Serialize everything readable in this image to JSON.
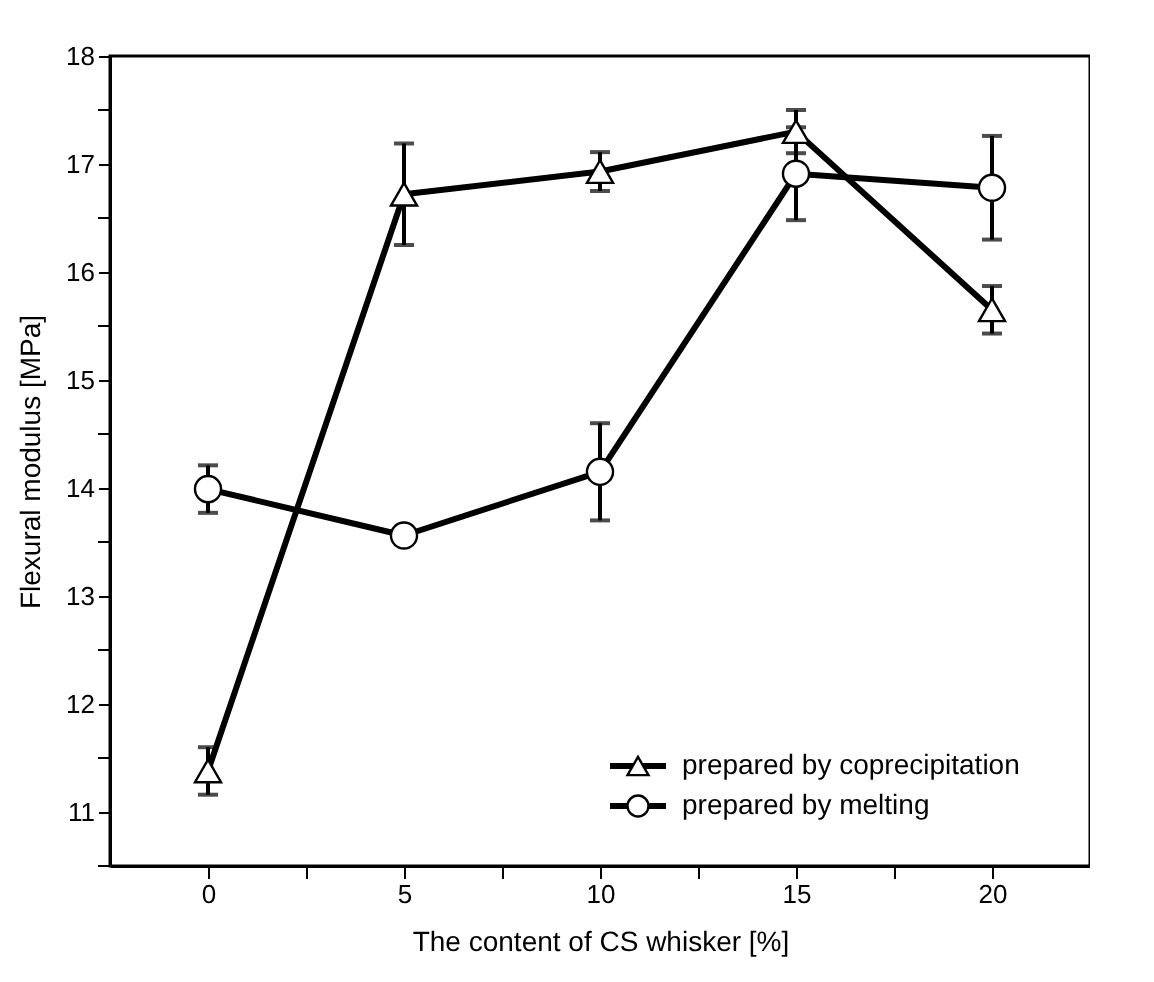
{
  "chart_data": {
    "type": "line",
    "xlabel": "The content of CS whisker [%]",
    "ylabel": "Flexural modulus [MPa]",
    "x": [
      0,
      5,
      10,
      15,
      20
    ],
    "series": [
      {
        "name": "prepared by coprecipitation",
        "color": "#000000",
        "marker": "triangle",
        "values": [
          11.38,
          16.72,
          16.93,
          17.3,
          15.65
        ],
        "errors": [
          0.22,
          0.47,
          0.18,
          0.2,
          0.22
        ]
      },
      {
        "name": "prepared by melting",
        "color": "#000000",
        "marker": "circle",
        "values": [
          13.99,
          13.56,
          14.15,
          16.91,
          16.78
        ],
        "errors": [
          0.22,
          0.08,
          0.45,
          0.43,
          0.48
        ]
      }
    ],
    "xlim": [
      -2.5,
      22.5
    ],
    "ylim": [
      10.5,
      18
    ],
    "xticks": [
      0,
      {
        "value": 2.5,
        "label": null
      },
      5,
      {
        "value": 7.5,
        "label": null
      },
      10,
      {
        "value": 12.5,
        "label": null
      },
      15,
      {
        "value": 17.5,
        "label": null
      },
      20
    ],
    "yticks": [
      {
        "value": 10.5,
        "label": null
      },
      11,
      {
        "value": 11.5,
        "label": null
      },
      12,
      {
        "value": 12.5,
        "label": null
      },
      13,
      {
        "value": 13.5,
        "label": null
      },
      14,
      {
        "value": 14.5,
        "label": null
      },
      15,
      {
        "value": 15.5,
        "label": null
      },
      16,
      {
        "value": 16.5,
        "label": null
      },
      17,
      {
        "value": 17.5,
        "label": null
      },
      18
    ],
    "legend": "bottom right",
    "grid": false,
    "line_style": "solid"
  }
}
